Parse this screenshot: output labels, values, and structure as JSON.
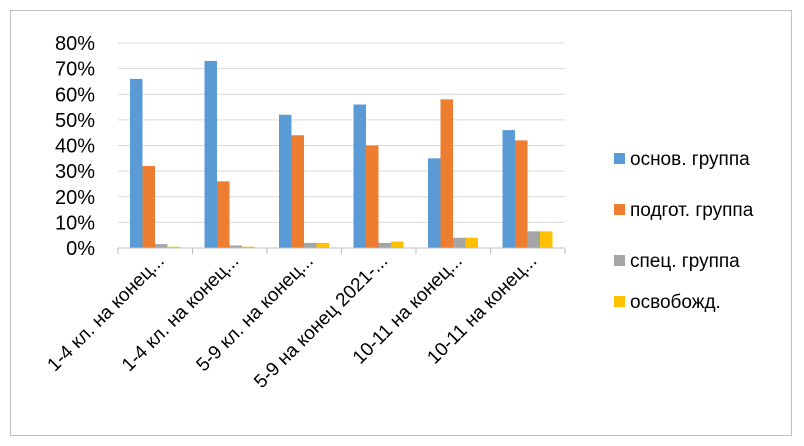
{
  "chart_data": {
    "type": "bar",
    "categories": [
      "1-4 кл. на конец...",
      "1-4 кл. на конец...",
      "5-9 кл. на конец...",
      "5-9 на конец 2021-...",
      "10-11 на конец...",
      "10-11 на конец..."
    ],
    "series": [
      {
        "name": "основ. группа",
        "color": "#5b9bd5",
        "values": [
          66,
          73,
          52,
          56,
          35,
          46
        ]
      },
      {
        "name": "подгот. группа",
        "color": "#ed7d31",
        "values": [
          32,
          26,
          44,
          40,
          58,
          42
        ]
      },
      {
        "name": "спец. группа",
        "color": "#a5a5a5",
        "values": [
          1.5,
          1,
          2,
          2,
          4,
          6.5
        ]
      },
      {
        "name": "освобожд.",
        "color": "#ffc000",
        "values": [
          0.5,
          0.5,
          2,
          2.5,
          4,
          6.5
        ]
      }
    ],
    "y_ticks": [
      "0%",
      "10%",
      "20%",
      "30%",
      "40%",
      "50%",
      "60%",
      "70%",
      "80%"
    ],
    "ylim": [
      0,
      80
    ],
    "grid": true,
    "legend_position": "right"
  }
}
